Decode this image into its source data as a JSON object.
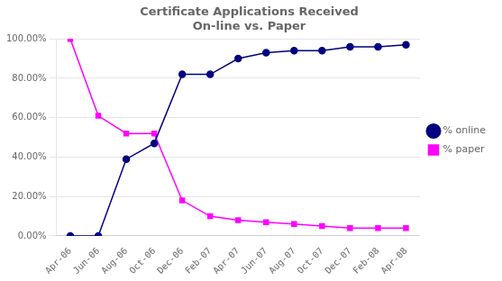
{
  "chart_data": {
    "type": "line",
    "title": "Certificate Applications Received\nOn-line vs. Paper",
    "categories": [
      "Apr-06",
      "Jun-06",
      "Aug-06",
      "Oct-06",
      "Dec-06",
      "Feb-07",
      "Apr-07",
      "Jun-07",
      "Aug-07",
      "Oct-07",
      "Dec-07",
      "Feb-08",
      "Apr-08"
    ],
    "series": [
      {
        "name": "% online",
        "color": "#000080",
        "marker": "circle",
        "values": [
          0.0,
          0.0,
          0.39,
          0.47,
          0.82,
          0.82,
          0.9,
          0.93,
          0.94,
          0.94,
          0.96,
          0.96,
          0.97
        ]
      },
      {
        "name": "% paper",
        "color": "#FF00FF",
        "marker": "square",
        "values": [
          1.0,
          0.61,
          0.52,
          0.52,
          0.18,
          0.1,
          0.08,
          0.07,
          0.06,
          0.05,
          0.04,
          0.04,
          0.04
        ]
      }
    ],
    "ylim": [
      0.0,
      1.0
    ],
    "yticks": [
      {
        "value": 0.0,
        "label": "0.00%"
      },
      {
        "value": 0.2,
        "label": "20.00%"
      },
      {
        "value": 0.4,
        "label": "40.00%"
      },
      {
        "value": 0.6,
        "label": "60.00%"
      },
      {
        "value": 0.8,
        "label": "80.00%"
      },
      {
        "value": 1.0,
        "label": "100.00%"
      }
    ],
    "grid": "y",
    "legend": "right"
  }
}
